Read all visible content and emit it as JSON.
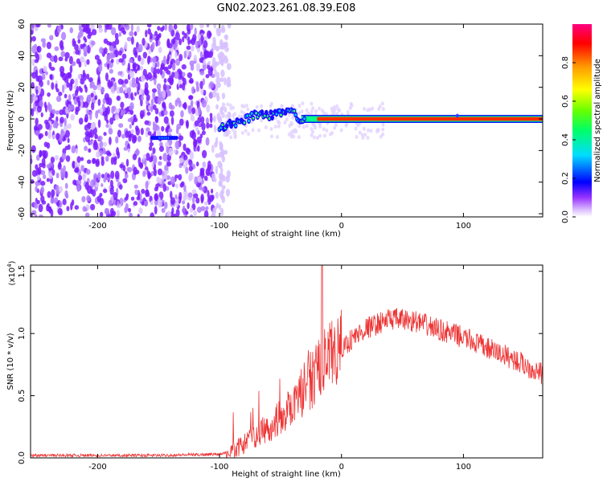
{
  "title": "GN02.2023.261.08.39.E08",
  "chart_data": [
    {
      "type": "heatmap",
      "xlabel": "Height of straight line (km)",
      "ylabel": "Frequency (Hz)",
      "xlim": [
        -255,
        165
      ],
      "ylim": [
        -62,
        60
      ],
      "xticks": [
        -200,
        -100,
        0,
        100
      ],
      "yticks": [
        -60,
        -40,
        -20,
        0,
        20,
        40,
        60
      ],
      "colorbar": {
        "label": "Normalized spectral amplitude",
        "range": [
          0,
          1
        ],
        "ticks": [
          "0.0",
          "0.2",
          "0.4",
          "0.6",
          "0.8"
        ],
        "colors": [
          "#ffffff",
          "#cc99ff",
          "#7700ff",
          "#0000ff",
          "#00ffff",
          "#00ff00",
          "#ffff00",
          "#ff8800",
          "#ff0000",
          "#ff0088"
        ]
      },
      "features": {
        "noise_region_x": [
          -255,
          -100
        ],
        "signal_trace": [
          {
            "x": -155,
            "y": -12
          },
          {
            "x": -140,
            "y": -12
          },
          {
            "x": -100,
            "y": -6
          },
          {
            "x": -90,
            "y": -3
          },
          {
            "x": -80,
            "y": -1
          },
          {
            "x": -70,
            "y": 3
          },
          {
            "x": -60,
            "y": 2
          },
          {
            "x": -50,
            "y": 4
          },
          {
            "x": -40,
            "y": 4
          },
          {
            "x": -35,
            "y": 0
          },
          {
            "x": -25,
            "y": 0
          },
          {
            "x": -20,
            "y": -1
          },
          {
            "x": -15,
            "y": 0
          },
          {
            "x": 0,
            "y": 0
          },
          {
            "x": 165,
            "y": 0
          }
        ]
      }
    },
    {
      "type": "line",
      "xlabel": "Height of straight line (km)",
      "ylabel": "SNR (10 * v/v)",
      "yscale_label": "(x10",
      "yscale_exp": "4",
      "xlim": [
        -255,
        165
      ],
      "ylim": [
        0,
        1.55
      ],
      "xticks": [
        -200,
        -100,
        0,
        100
      ],
      "yticks": [
        "0.0",
        "0.5",
        "1.0",
        "1.5"
      ],
      "color": "#ee3333",
      "envelope": [
        {
          "x": -255,
          "y": 0.02
        },
        {
          "x": -150,
          "y": 0.02
        },
        {
          "x": -100,
          "y": 0.03
        },
        {
          "x": -85,
          "y": 0.08
        },
        {
          "x": -70,
          "y": 0.18
        },
        {
          "x": -55,
          "y": 0.28
        },
        {
          "x": -45,
          "y": 0.38
        },
        {
          "x": -30,
          "y": 0.55
        },
        {
          "x": -20,
          "y": 0.7
        },
        {
          "x": -10,
          "y": 0.8
        },
        {
          "x": 0,
          "y": 0.88
        },
        {
          "x": 10,
          "y": 0.97
        },
        {
          "x": 20,
          "y": 1.04
        },
        {
          "x": 30,
          "y": 1.08
        },
        {
          "x": 40,
          "y": 1.12
        },
        {
          "x": 60,
          "y": 1.1
        },
        {
          "x": 80,
          "y": 1.03
        },
        {
          "x": 100,
          "y": 0.97
        },
        {
          "x": 120,
          "y": 0.88
        },
        {
          "x": 140,
          "y": 0.8
        },
        {
          "x": 165,
          "y": 0.67
        }
      ],
      "spike": {
        "x": -16,
        "y": 1.55
      }
    }
  ]
}
